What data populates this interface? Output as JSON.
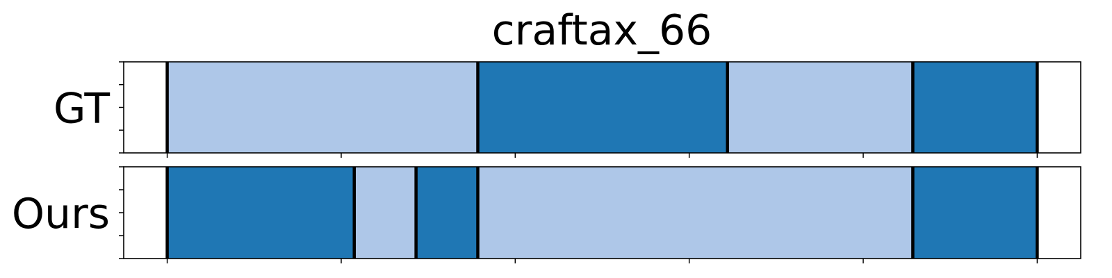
{
  "chart_data": {
    "type": "segmentation-timeline",
    "title": "craftax_66",
    "colors": {
      "light": "#aec7e8",
      "dark": "#1f77b4",
      "boundary": "#000000",
      "frame": "#000000"
    },
    "xlim": [
      -0.05,
      1.05
    ],
    "rows": [
      {
        "label": "GT",
        "segments": [
          {
            "start": 0.0,
            "end": 0.357,
            "color": "light"
          },
          {
            "start": 0.357,
            "end": 0.644,
            "color": "dark"
          },
          {
            "start": 0.644,
            "end": 0.857,
            "color": "light"
          },
          {
            "start": 0.857,
            "end": 1.0,
            "color": "dark"
          }
        ]
      },
      {
        "label": "Ours",
        "segments": [
          {
            "start": 0.0,
            "end": 0.215,
            "color": "dark"
          },
          {
            "start": 0.215,
            "end": 0.286,
            "color": "light"
          },
          {
            "start": 0.286,
            "end": 0.357,
            "color": "dark"
          },
          {
            "start": 0.357,
            "end": 0.857,
            "color": "light"
          },
          {
            "start": 0.857,
            "end": 1.0,
            "color": "dark"
          }
        ]
      }
    ],
    "xticks": [
      0.0,
      0.2,
      0.4,
      0.6,
      0.8,
      1.0
    ],
    "yticks_per_row": 5,
    "grid": false
  }
}
